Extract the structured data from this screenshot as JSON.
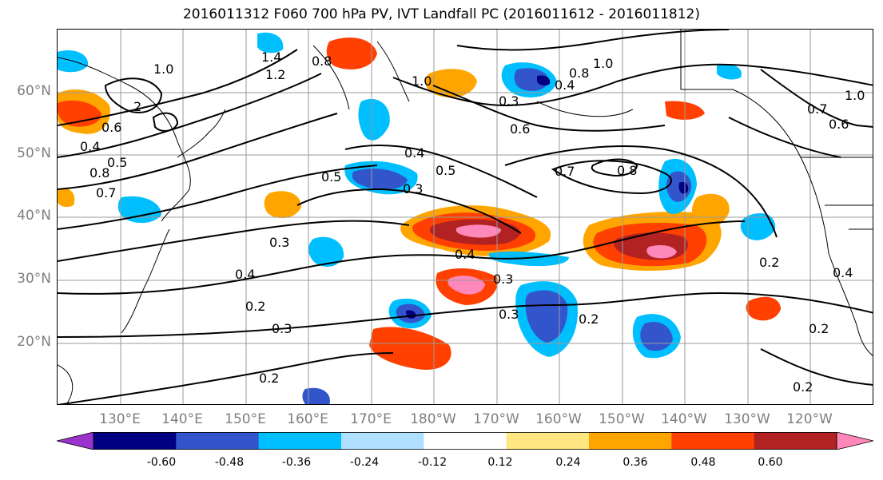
{
  "title": "2016011312 F060 700 hPa PV, IVT Landfall PC (2016011612 - 2016011812)",
  "lat_labels": [
    "60°N",
    "50°N",
    "40°N",
    "30°N",
    "20°N"
  ],
  "lon_labels": [
    "130°E",
    "140°E",
    "150°E",
    "160°E",
    "170°E",
    "180°W",
    "170°W",
    "160°W",
    "150°W",
    "140°W",
    "130°W",
    "120°W"
  ],
  "colorbar": {
    "colors": [
      "#9933cc",
      "#000080",
      "#3355cc",
      "#00bfff",
      "#b0e0ff",
      "#ffffff",
      "#ffe680",
      "#ffa500",
      "#ff4000",
      "#b22222",
      "#ff88bb"
    ],
    "tick_labels": [
      "-0.60",
      "-0.48",
      "-0.36",
      "-0.24",
      "-0.12",
      "0.12",
      "0.24",
      "0.36",
      "0.48",
      "0.60"
    ]
  },
  "contour_labels": [
    "1.0",
    "1.0",
    "0.8",
    "1.4",
    "1.2",
    "1.0",
    "0.8",
    "0.3",
    "0.4",
    "1.0",
    "2",
    "0.6",
    "0.4",
    "0.5",
    "0.8",
    "0.7",
    "0.6",
    "0.5",
    "0.4",
    "0.5",
    "0.3",
    "0.7",
    "0.8",
    "0.7",
    "0.6",
    "0.3",
    "0.4",
    "0.3",
    "0.4",
    "0.3",
    "0.2",
    "0.3",
    "0.2",
    "0.2",
    "0.2",
    "0.2",
    "0.2",
    "0.4"
  ],
  "colors": {
    "frame": "#000000",
    "grid": "#9a9a9a",
    "axis_label": "#7f7f7f"
  }
}
